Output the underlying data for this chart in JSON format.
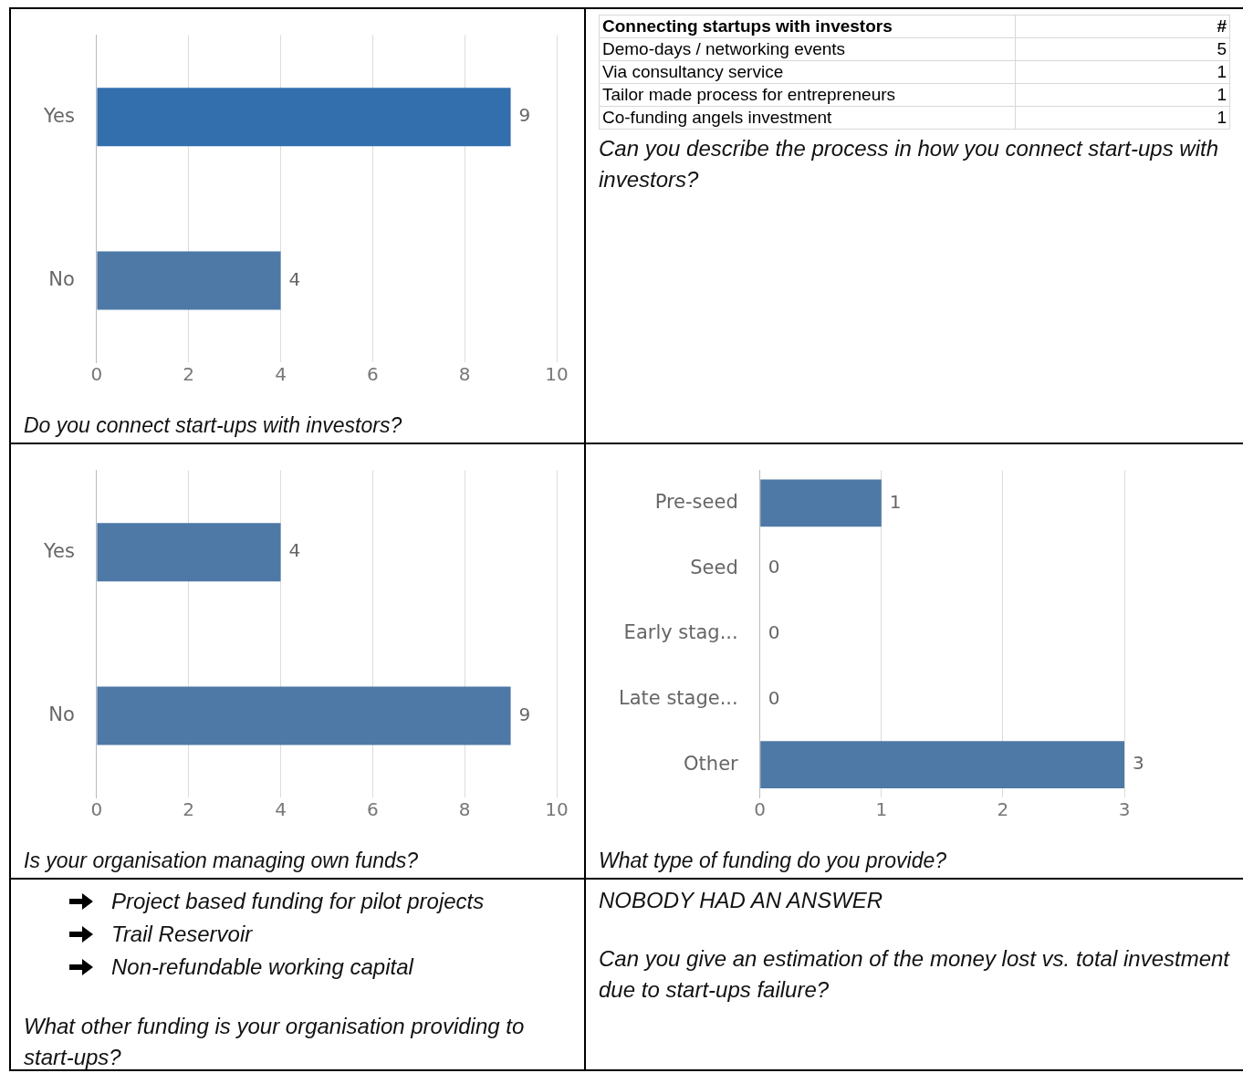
{
  "chart_data": [
    {
      "type": "bar",
      "orientation": "horizontal",
      "title": "Do you connect start-ups with investors?",
      "categories": [
        "Yes",
        "No"
      ],
      "values": [
        9,
        4
      ],
      "colors": [
        "#336ead",
        "#4e79a7"
      ],
      "xlim": [
        0,
        10
      ],
      "xticks": [
        0,
        2,
        4,
        6,
        8,
        10
      ],
      "grid": "x",
      "data_labels": true
    },
    {
      "type": "other",
      "title": "Connecting startups with investors",
      "ylabel": "#",
      "categories": [
        "Demo-days / networking events",
        "Via consultancy service",
        "Tailor made process for entrepreneurs",
        "Co-funding angels investment"
      ],
      "values": [
        5,
        1,
        1,
        1
      ],
      "data_labels": true,
      "annotations": [
        "Can you describe the process in how you connect start-ups with investors?"
      ]
    },
    {
      "type": "bar",
      "orientation": "horizontal",
      "title": "Is your organisation managing own funds?",
      "categories": [
        "Yes",
        "No"
      ],
      "values": [
        4,
        9
      ],
      "color": "#4e79a7",
      "xlim": [
        0,
        10
      ],
      "xticks": [
        0,
        2,
        4,
        6,
        8,
        10
      ],
      "grid": "x",
      "data_labels": true
    },
    {
      "type": "bar",
      "orientation": "horizontal",
      "title": "What type of funding do you provide?",
      "categories": [
        "Pre-seed",
        "Seed",
        "Early stag...",
        "Late stage...",
        "Other"
      ],
      "values": [
        1,
        0,
        0,
        0,
        3
      ],
      "color": "#4e79a7",
      "xlim": [
        0,
        3
      ],
      "xticks": [
        0,
        1,
        2,
        3
      ],
      "grid": "x",
      "data_labels": true
    },
    {
      "type": "other",
      "title": "What other funding is your organisation providing to start-ups?",
      "categories": [
        "Project based funding for pilot projects",
        "Trail Reservoir",
        "Non-refundable working capital"
      ]
    },
    {
      "type": "other",
      "title": "Can you give an estimation of the money lost vs. total investment due to start-ups failure?",
      "annotations": [
        "NOBODY HAD AN ANSWER"
      ]
    }
  ]
}
